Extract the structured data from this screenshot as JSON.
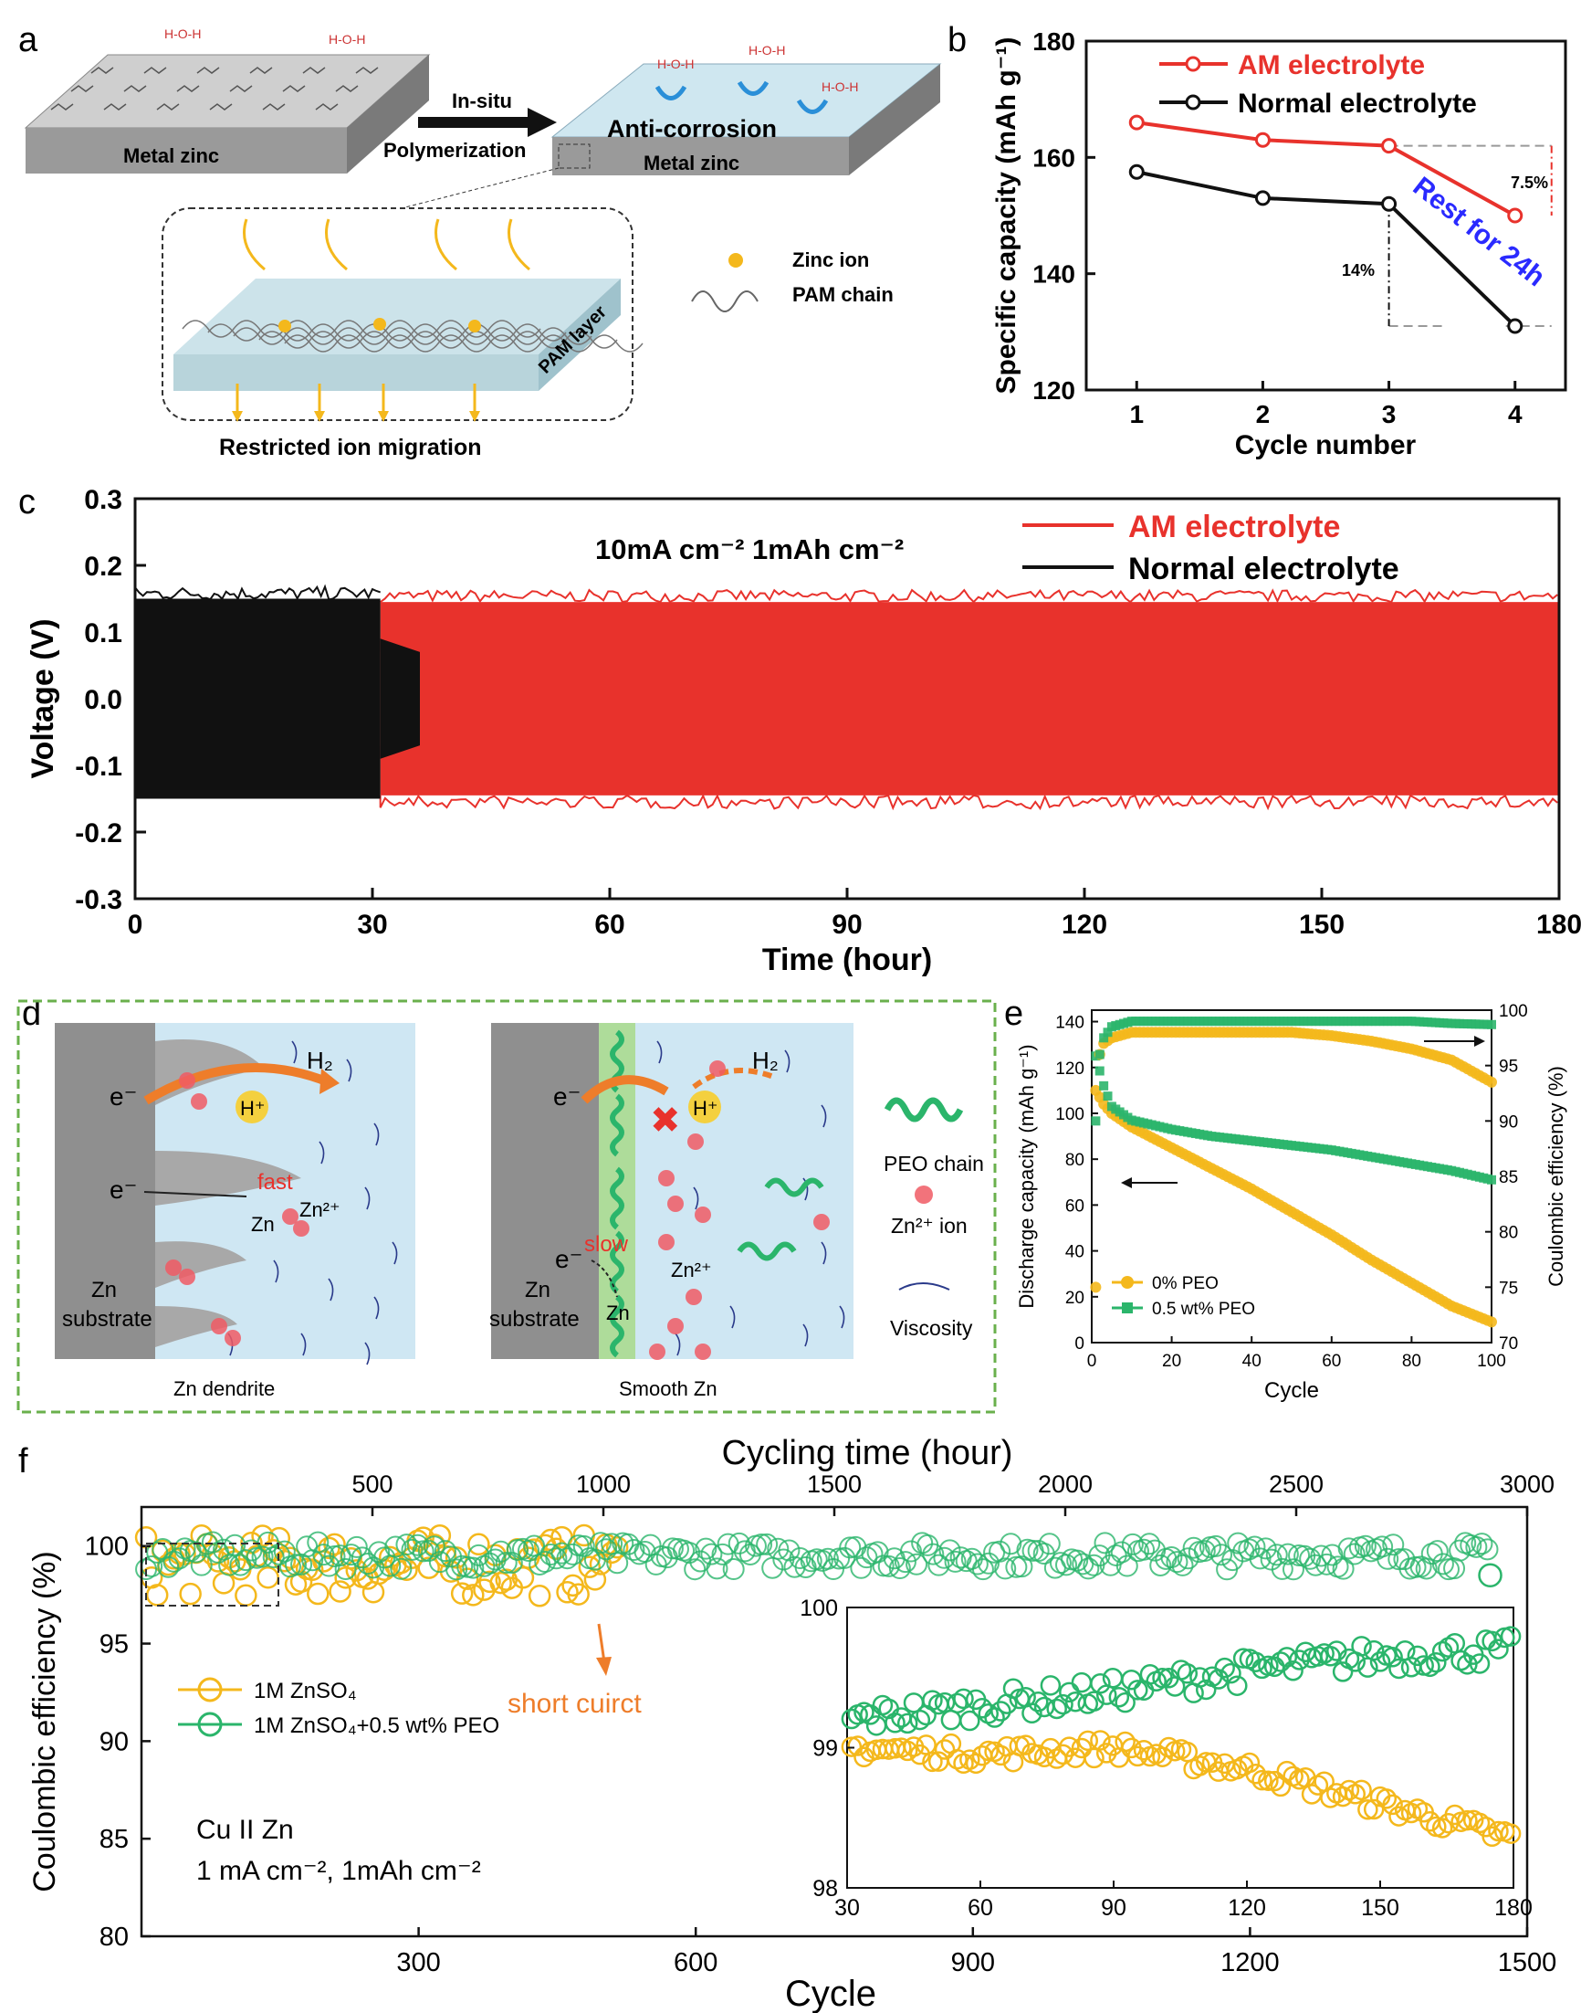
{
  "colors": {
    "red": "#e8322c",
    "black": "#111111",
    "green": "#2bb56b",
    "yellow": "#f4b81c",
    "blue": "#2a2aff",
    "orange": "#ee7d2a",
    "diagram_bg": "#cfe7f3",
    "zinc": "#9e9e9e",
    "dash_green": "#6ab04c"
  },
  "panel_labels": {
    "a": "a",
    "b": "b",
    "c": "c",
    "d": "d",
    "e": "e",
    "f": "f"
  },
  "panel_a": {
    "metal_zinc_left": "Metal zinc",
    "metal_zinc_right": "Metal zinc",
    "arrow_top": "In-situ",
    "arrow_bottom": "Polymerization",
    "anti_corrosion": "Anti-corrosion",
    "pam_layer": "PAM layer",
    "legend_zinc_ion": "Zinc ion",
    "legend_pam_chain": "PAM chain",
    "restricted": "Restricted ion migration"
  },
  "panel_d": {
    "e_minus": "e⁻",
    "h_plus": "H⁺",
    "h2": "H₂",
    "fast": "fast",
    "slow": "slow",
    "zn": "Zn",
    "zn2": "Zn²⁺",
    "zn_substrate_1": "Zn",
    "zn_substrate_2": "substrate",
    "caption_left": "Zn dendrite",
    "caption_right": "Smooth Zn",
    "legend_peo": "PEO chain",
    "legend_zn_ion": "Zn²⁺ ion",
    "legend_viscosity": "Viscosity"
  },
  "chart_data": [
    {
      "id": "b",
      "type": "line",
      "title": "",
      "xlabel": "Cycle number",
      "ylabel": "Specific capacity (mAh g⁻¹)",
      "xlim": [
        0.6,
        4.4
      ],
      "ylim": [
        120,
        180
      ],
      "x_ticks": [
        1,
        2,
        3,
        4
      ],
      "y_ticks": [
        120,
        140,
        160,
        180
      ],
      "series": [
        {
          "name": "AM electrolyte",
          "color": "#e8322c",
          "x": [
            1,
            2,
            3,
            4
          ],
          "values": [
            166,
            163,
            162,
            150
          ]
        },
        {
          "name": "Normal electrolyte",
          "color": "#111111",
          "x": [
            1,
            2,
            3,
            4
          ],
          "values": [
            157.5,
            153,
            152,
            131
          ]
        }
      ],
      "annotations": {
        "rest": "Rest for 24h",
        "pct_am": "7.5%",
        "pct_normal": "14%"
      }
    },
    {
      "id": "c",
      "type": "line",
      "title": "10mA cm⁻² 1mAh cm⁻²",
      "xlabel": "Time (hour)",
      "ylabel": "Voltage (V)",
      "xlim": [
        0,
        180
      ],
      "ylim": [
        -0.3,
        0.3
      ],
      "x_ticks": [
        0,
        30,
        60,
        90,
        120,
        150,
        180
      ],
      "y_ticks": [
        -0.3,
        -0.2,
        -0.1,
        0.0,
        0.1,
        0.2,
        0.3
      ],
      "series": [
        {
          "name": "AM electrolyte",
          "color": "#e8322c",
          "x_range": [
            31,
            180
          ],
          "amplitude": 0.145
        },
        {
          "name": "Normal electrolyte",
          "color": "#111111",
          "x_range": [
            0,
            31
          ],
          "amplitude": 0.15
        }
      ]
    },
    {
      "id": "e",
      "type": "scatter",
      "xlabel": "Cycle",
      "ylabel_left": "Discharge capacity (mAh g⁻¹)",
      "ylabel_right": "Coulombic efficiency (%)",
      "xlim": [
        0,
        100
      ],
      "ylim_left": [
        0,
        145
      ],
      "ylim_right": [
        70,
        100
      ],
      "x_ticks": [
        0,
        20,
        40,
        60,
        80,
        100
      ],
      "y_ticks_left": [
        0,
        20,
        40,
        60,
        80,
        100,
        120,
        140
      ],
      "y_ticks_right": [
        70,
        75,
        80,
        85,
        90,
        95,
        100
      ],
      "series": [
        {
          "name": "0% PEO",
          "color": "#f4b81c",
          "marker": "circle",
          "axis": "left",
          "x": [
            1,
            3,
            5,
            10,
            20,
            30,
            40,
            50,
            60,
            70,
            80,
            90,
            100
          ],
          "values": [
            110,
            104,
            100,
            94,
            85,
            76,
            67,
            57,
            47,
            36,
            26,
            16,
            9
          ]
        },
        {
          "name": "0.5 wt% PEO",
          "color": "#2bb56b",
          "marker": "square",
          "axis": "left",
          "x": [
            1,
            3,
            5,
            10,
            20,
            30,
            40,
            50,
            60,
            70,
            80,
            90,
            100
          ],
          "values": [
            125,
            112,
            103,
            97,
            93,
            90,
            88,
            86,
            84,
            81,
            78,
            75,
            71
          ]
        },
        {
          "name": "0% PEO CE",
          "color": "#f4b81c",
          "marker": "circle",
          "axis": "right",
          "x": [
            1,
            2,
            3,
            5,
            10,
            20,
            30,
            40,
            50,
            60,
            70,
            80,
            90,
            100
          ],
          "values": [
            75,
            96,
            97,
            97.5,
            98,
            98,
            98,
            98,
            98,
            97.7,
            97.2,
            96.5,
            95.5,
            93.5
          ]
        },
        {
          "name": "0.5 wt% PEO CE",
          "color": "#2bb56b",
          "marker": "square",
          "axis": "right",
          "x": [
            1,
            2,
            3,
            5,
            10,
            20,
            30,
            40,
            50,
            60,
            70,
            80,
            90,
            100
          ],
          "values": [
            90,
            96,
            97.5,
            98.5,
            99,
            99,
            99,
            99,
            99,
            99,
            99,
            99,
            98.8,
            98.7
          ]
        }
      ],
      "legend": [
        "0% PEO",
        "0.5 wt% PEO"
      ]
    },
    {
      "id": "f",
      "type": "scatter",
      "xlabel": "Cycle",
      "x2label": "Cycling time (hour)",
      "ylabel": "Coulombic efficiency (%)",
      "xlim": [
        0,
        1500
      ],
      "x2lim": [
        0,
        3000
      ],
      "ylim": [
        80,
        102
      ],
      "x_ticks": [
        300,
        600,
        900,
        1200,
        1500
      ],
      "x2_ticks": [
        500,
        1000,
        1500,
        2000,
        2500,
        3000
      ],
      "y_ticks": [
        80,
        85,
        90,
        95,
        100
      ],
      "series": [
        {
          "name": "1M ZnSO₄",
          "color": "#f4b81c",
          "x_range": [
            0,
            520
          ],
          "mean": 99.0,
          "spread": 1.6
        },
        {
          "name": "1M ZnSO₄+0.5 wt% PEO",
          "color": "#2bb56b",
          "x_range": [
            0,
            1460
          ],
          "mean": 99.5,
          "spread": 0.7
        }
      ],
      "annotations": {
        "short": "short cuirct",
        "cell": "Cu II Zn",
        "condition": "1 mA cm⁻², 1mAh cm⁻²"
      },
      "inset": {
        "xlim": [
          30,
          180
        ],
        "ylim": [
          98,
          100
        ],
        "x_ticks": [
          30,
          60,
          90,
          120,
          150,
          180
        ],
        "y_ticks": [
          98,
          99,
          100
        ],
        "yellow": {
          "x": [
            30,
            60,
            90,
            120,
            150,
            180
          ],
          "values": [
            99.0,
            98.95,
            99.0,
            98.85,
            98.6,
            98.35
          ]
        },
        "green": {
          "x": [
            30,
            60,
            90,
            120,
            150,
            180
          ],
          "values": [
            99.2,
            99.3,
            99.4,
            99.55,
            99.65,
            99.7
          ]
        }
      }
    }
  ]
}
